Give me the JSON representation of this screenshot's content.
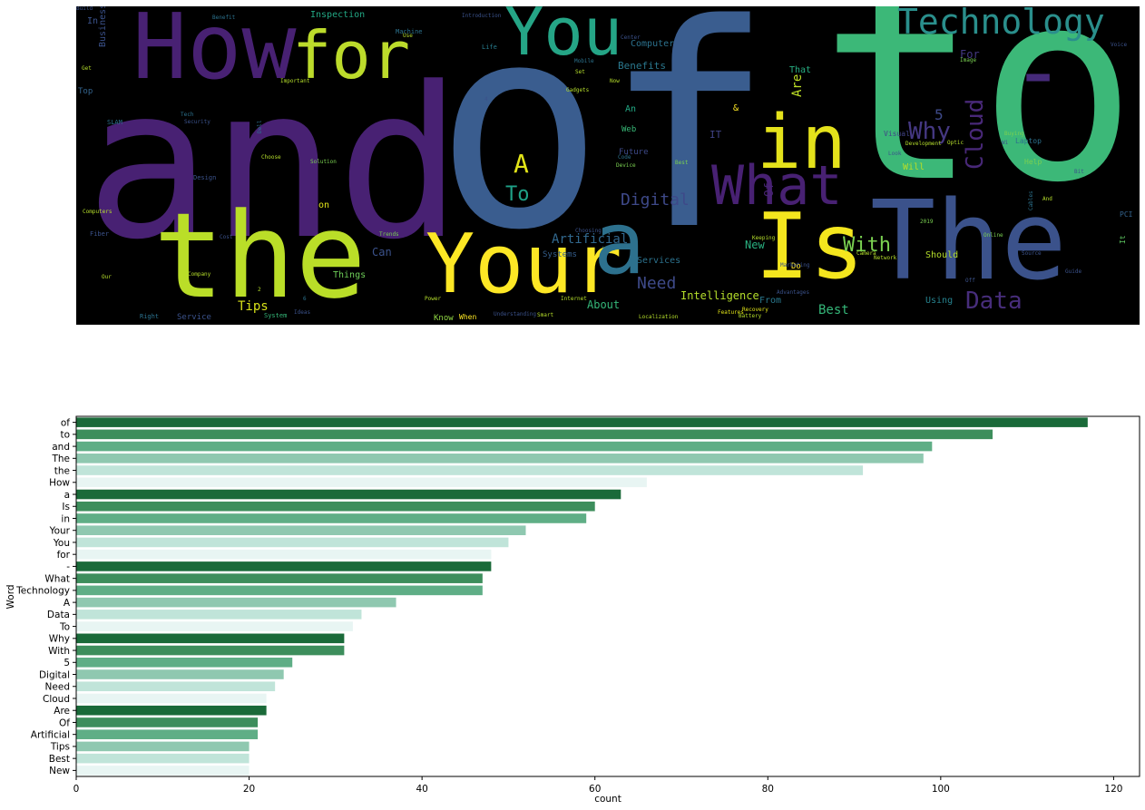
{
  "chart_data": [
    {
      "type": "wordcloud",
      "background": "#000000",
      "colormap": "viridis",
      "words": [
        {
          "text": "and",
          "c": "#482173"
        },
        {
          "text": "of",
          "c": "#3a5d8f"
        },
        {
          "text": "to",
          "c": "#3cb878"
        },
        {
          "text": "How",
          "c": "#482173"
        },
        {
          "text": "You",
          "c": "#25a586"
        },
        {
          "text": "for",
          "c": "#bcdb2b"
        },
        {
          "text": "Technology",
          "c": "#2a8f8c"
        },
        {
          "text": "-",
          "c": "#462a7a"
        },
        {
          "text": "in",
          "c": "#e4e21b"
        },
        {
          "text": "What",
          "c": "#482173"
        },
        {
          "text": "The",
          "c": "#3b528b"
        },
        {
          "text": "the",
          "c": "#bade28"
        },
        {
          "text": "Your",
          "c": "#fde725"
        },
        {
          "text": "a",
          "c": "#2d718e"
        },
        {
          "text": "Is",
          "c": "#f4e61e"
        },
        {
          "text": "Data",
          "c": "#472d7b"
        },
        {
          "text": "A",
          "c": "#e2e418"
        },
        {
          "text": "To",
          "c": "#1fa187"
        },
        {
          "text": "Why",
          "c": "#453882"
        },
        {
          "text": "With",
          "c": "#7ad151"
        },
        {
          "text": "Cloud",
          "c": "#482878"
        },
        {
          "text": "Need",
          "c": "#3e4a89"
        },
        {
          "text": "Digital",
          "c": "#3e4989"
        },
        {
          "text": "5",
          "c": "#3e4a89"
        },
        {
          "text": "Are",
          "c": "#bddf26"
        },
        {
          "text": "Artificial",
          "c": "#31688e"
        },
        {
          "text": "Best",
          "c": "#35b779"
        },
        {
          "text": "Tips",
          "c": "#d8e219"
        },
        {
          "text": "Of",
          "c": "#482475"
        },
        {
          "text": "New",
          "c": "#29af7f"
        },
        {
          "text": "Intelligence",
          "c": "#b5de2b"
        },
        {
          "text": "About",
          "c": "#35b779"
        },
        {
          "text": "Benefits",
          "c": "#2a788e"
        },
        {
          "text": "Computer",
          "c": "#2c728e"
        },
        {
          "text": "Inspection",
          "c": "#22a884"
        },
        {
          "text": "Business",
          "c": "#3b528b"
        },
        {
          "text": "Can",
          "c": "#3b528b"
        },
        {
          "text": "Things",
          "c": "#6ece58"
        },
        {
          "text": "Services",
          "c": "#2c728e"
        },
        {
          "text": "Systems",
          "c": "#355f8d"
        },
        {
          "text": "Web",
          "c": "#38b977"
        },
        {
          "text": "Future",
          "c": "#3e4a89"
        },
        {
          "text": "IT",
          "c": "#414487"
        },
        {
          "text": "&",
          "c": "#fde725"
        },
        {
          "text": "An",
          "c": "#22a884"
        },
        {
          "text": "That",
          "c": "#27ad81"
        },
        {
          "text": "For",
          "c": "#443983"
        },
        {
          "text": "Will",
          "c": "#b8de29"
        },
        {
          "text": "Should",
          "c": "#b5de2b"
        },
        {
          "text": "Using",
          "c": "#26828e"
        },
        {
          "text": "From",
          "c": "#2a788e"
        },
        {
          "text": "Service",
          "c": "#3b528b"
        },
        {
          "text": "Know",
          "c": "#90d743"
        },
        {
          "text": "When",
          "c": "#fde725"
        },
        {
          "text": "Visual",
          "c": "#414487"
        },
        {
          "text": "Help",
          "c": "#7ad151"
        },
        {
          "text": "Laptop",
          "c": "#2c728e"
        },
        {
          "text": "on",
          "c": "#e2e418"
        },
        {
          "text": "Do",
          "c": "#fde725"
        },
        {
          "text": "Top",
          "c": "#33638d"
        },
        {
          "text": "In",
          "c": "#3b528b"
        },
        {
          "text": "Design",
          "c": "#3b528b"
        },
        {
          "text": "Right",
          "c": "#2c728e"
        },
        {
          "text": "System",
          "c": "#35b779"
        },
        {
          "text": "Machine",
          "c": "#2c728e"
        },
        {
          "text": "Life",
          "c": "#287c8e"
        },
        {
          "text": "PCI",
          "c": "#33638d"
        },
        {
          "text": "It",
          "c": "#5ec962"
        },
        {
          "text": "Fiber",
          "c": "#3b528b"
        },
        {
          "text": "SLAM",
          "c": "#2c728e"
        },
        {
          "text": "Security",
          "c": "#3b528b"
        },
        {
          "text": "Solution",
          "c": "#7ad151"
        },
        {
          "text": "Choose",
          "c": "#b5de2b"
        },
        {
          "text": "Trends",
          "c": "#7ad151"
        },
        {
          "text": "Network",
          "c": "#b5de2b"
        },
        {
          "text": "Features",
          "c": "#e2e418"
        },
        {
          "text": "Advantages",
          "c": "#3b528b"
        },
        {
          "text": "Battery",
          "c": "#b5de2b"
        },
        {
          "text": "Recovery",
          "c": "#e2e418"
        },
        {
          "text": "Marketing",
          "c": "#3b528b"
        },
        {
          "text": "Localization",
          "c": "#b5de2b"
        },
        {
          "text": "Smart",
          "c": "#b5de2b"
        },
        {
          "text": "Understanding",
          "c": "#3b528b"
        },
        {
          "text": "Choosing",
          "c": "#3b528b"
        },
        {
          "text": "Development",
          "c": "#b5de2b"
        },
        {
          "text": "Buying",
          "c": "#7ad151"
        },
        {
          "text": "Computers",
          "c": "#b5de2b"
        },
        {
          "text": "Important",
          "c": "#b5de2b"
        },
        {
          "text": "Introduction",
          "c": "#3b528b"
        },
        {
          "text": "Mobile",
          "c": "#2c728e"
        },
        {
          "text": "Image",
          "c": "#7ad151"
        },
        {
          "text": "Device",
          "c": "#7ad151"
        },
        {
          "text": "Code",
          "c": "#2c728e"
        },
        {
          "text": "Get",
          "c": "#b5de2b"
        },
        {
          "text": "Tech",
          "c": "#2c728e"
        },
        {
          "text": "Cost",
          "c": "#3b528b"
        },
        {
          "text": "Our",
          "c": "#b5de2b"
        },
        {
          "text": "Power",
          "c": "#b5de2b"
        },
        {
          "text": "Internet",
          "c": "#b5de2b"
        },
        {
          "text": "Cables",
          "c": "#2c728e"
        },
        {
          "text": "Ways",
          "c": "#2c728e"
        },
        {
          "text": "Wi",
          "c": "#3b528b"
        },
        {
          "text": "Camera",
          "c": "#b5de2b"
        },
        {
          "text": "Keeping",
          "c": "#b5de2b"
        },
        {
          "text": "Optic",
          "c": "#b5de2b"
        },
        {
          "text": "Company",
          "c": "#b5de2b"
        },
        {
          "text": "Center",
          "c": "#3b528b"
        },
        {
          "text": "Dell",
          "c": "#2c728e"
        },
        {
          "text": "Now",
          "c": "#b5de2b"
        },
        {
          "text": "Look",
          "c": "#3b528b"
        },
        {
          "text": "2019",
          "c": "#7ad151"
        },
        {
          "text": "Bit",
          "c": "#3b528b"
        },
        {
          "text": "And",
          "c": "#b5de2b"
        },
        {
          "text": "Guide",
          "c": "#3b528b"
        },
        {
          "text": "Gadgets",
          "c": "#b5de2b"
        },
        {
          "text": "Online",
          "c": "#7ad151"
        },
        {
          "text": "Best",
          "c": "#7ad151"
        },
        {
          "text": "Use",
          "c": "#b5de2b"
        },
        {
          "text": "Ideas",
          "c": "#3b528b"
        },
        {
          "text": "Benefit",
          "c": "#2c728e"
        },
        {
          "text": "Set",
          "c": "#b5de2b"
        },
        {
          "text": "Source",
          "c": "#3b528b"
        },
        {
          "text": "2",
          "c": "#b5de2b"
        },
        {
          "text": "6",
          "c": "#2c728e"
        },
        {
          "text": "4",
          "c": "#3b528b"
        },
        {
          "text": "Off",
          "c": "#3b528b"
        },
        {
          "text": "Voice",
          "c": "#3b528b"
        },
        {
          "text": "Build",
          "c": "#3b528b"
        }
      ]
    },
    {
      "type": "bar",
      "orientation": "horizontal",
      "xlabel": "count",
      "ylabel": "Word",
      "xlim": [
        0,
        123
      ],
      "xticks": [
        0,
        20,
        40,
        60,
        80,
        100,
        120
      ],
      "palette": [
        "#1a6a39",
        "#3d8e5c",
        "#5fae86",
        "#8fc8b0",
        "#c0e4d9",
        "#e8f5f3"
      ],
      "categories": [
        "of",
        "to",
        "and",
        "The",
        "the",
        "How",
        "a",
        "Is",
        "in",
        "Your",
        "You",
        "for",
        "-",
        "What",
        "Technology",
        "A",
        "Data",
        "To",
        "Why",
        "With",
        "5",
        "Digital",
        "Need",
        "Cloud",
        "Are",
        "Of",
        "Artificial",
        "Tips",
        "Best",
        "New"
      ],
      "values": [
        117,
        106,
        99,
        98,
        91,
        66,
        63,
        60,
        59,
        52,
        50,
        48,
        48,
        47,
        47,
        37,
        33,
        32,
        31,
        31,
        25,
        24,
        23,
        22,
        22,
        21,
        21,
        20,
        20,
        20
      ]
    }
  ]
}
